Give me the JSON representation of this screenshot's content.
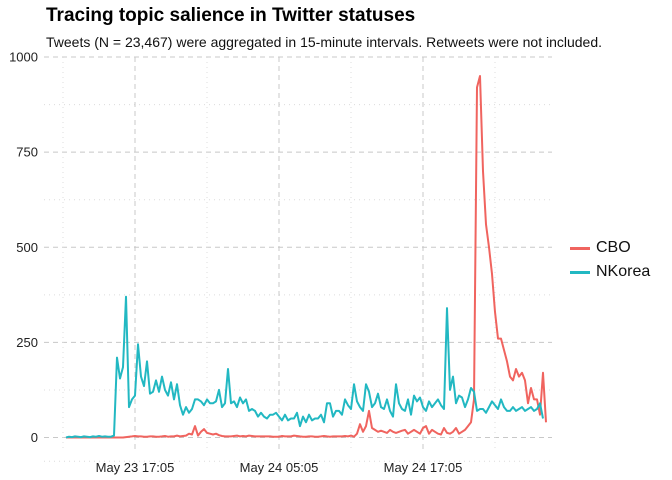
{
  "title": "Tracing topic salience in Twitter statuses",
  "subtitle": "Tweets (N = 23,467) were aggregated in 15-minute intervals. Retweets were not included.",
  "chart_data": {
    "type": "line",
    "x_unit": "15-minute interval",
    "x_ticks": [
      {
        "label": "May 23 17:05",
        "x": 23
      },
      {
        "label": "May 24 05:05",
        "x": 71
      },
      {
        "label": "May 24 17:05",
        "x": 119
      }
    ],
    "y_ticks": [
      0,
      250,
      500,
      750,
      1000
    ],
    "ylim": [
      0,
      1000
    ],
    "grid": true,
    "legend_position": "right",
    "series": [
      {
        "name": "CBO",
        "color": "#F0645F",
        "values": [
          0,
          0,
          0,
          0,
          0,
          0,
          0,
          0,
          0,
          0,
          0,
          0,
          0,
          0,
          0,
          0,
          0,
          0,
          0,
          0,
          1,
          2,
          3,
          4,
          3,
          3,
          2,
          2,
          3,
          3,
          2,
          2,
          3,
          4,
          2,
          3,
          3,
          5,
          3,
          4,
          5,
          10,
          8,
          30,
          5,
          15,
          22,
          12,
          10,
          8,
          10,
          6,
          4,
          3,
          3,
          3,
          4,
          5,
          3,
          4,
          3,
          5,
          4,
          3,
          3,
          3,
          3,
          3,
          3,
          2,
          2,
          2,
          4,
          3,
          3,
          3,
          5,
          4,
          3,
          2,
          2,
          3,
          3,
          2,
          2,
          3,
          4,
          3,
          2,
          3,
          3,
          3,
          3,
          4,
          3,
          5,
          2,
          10,
          35,
          15,
          30,
          70,
          25,
          20,
          15,
          18,
          15,
          12,
          20,
          15,
          12,
          15,
          18,
          20,
          10,
          15,
          20,
          15,
          10,
          25,
          30,
          10,
          20,
          15,
          10,
          8,
          25,
          12,
          10,
          15,
          25,
          10,
          15,
          20,
          30,
          40,
          100,
          920,
          950,
          700,
          560,
          500,
          430,
          330,
          260,
          260,
          230,
          200,
          160,
          150,
          180,
          160,
          170,
          150,
          90,
          130,
          100,
          100,
          60,
          170,
          40
        ]
      },
      {
        "name": "NKorea",
        "color": "#22B8C2",
        "values": [
          0,
          2,
          1,
          3,
          2,
          1,
          3,
          2,
          1,
          3,
          2,
          4,
          2,
          3,
          2,
          2,
          5,
          210,
          155,
          185,
          370,
          80,
          100,
          110,
          245,
          160,
          135,
          200,
          115,
          120,
          150,
          120,
          160,
          125,
          110,
          145,
          100,
          140,
          85,
          60,
          80,
          65,
          75,
          100,
          100,
          95,
          85,
          100,
          90,
          90,
          95,
          125,
          80,
          90,
          180,
          90,
          95,
          80,
          105,
          90,
          100,
          70,
          75,
          70,
          55,
          65,
          55,
          50,
          60,
          60,
          65,
          55,
          45,
          60,
          45,
          50,
          50,
          65,
          30,
          55,
          40,
          60,
          45,
          50,
          50,
          60,
          40,
          90,
          90,
          55,
          70,
          70,
          60,
          100,
          85,
          75,
          140,
          95,
          80,
          70,
          140,
          120,
          80,
          90,
          115,
          80,
          75,
          100,
          70,
          55,
          140,
          90,
          75,
          70,
          100,
          60,
          110,
          95,
          105,
          80,
          70,
          95,
          80,
          90,
          100,
          85,
          75,
          340,
          125,
          160,
          90,
          110,
          105,
          80,
          100,
          130,
          120,
          70,
          75,
          75,
          65,
          80,
          95,
          85,
          75,
          100,
          80,
          70,
          70,
          80,
          70,
          75,
          80,
          70,
          75,
          80,
          70,
          75,
          90,
          50
        ]
      }
    ]
  }
}
